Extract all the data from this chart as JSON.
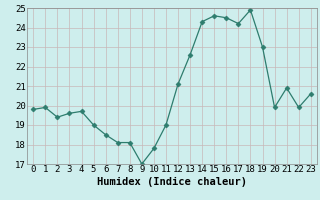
{
  "x": [
    0,
    1,
    2,
    3,
    4,
    5,
    6,
    7,
    8,
    9,
    10,
    11,
    12,
    13,
    14,
    15,
    16,
    17,
    18,
    19,
    20,
    21,
    22,
    23
  ],
  "y": [
    19.8,
    19.9,
    19.4,
    19.6,
    19.7,
    19.0,
    18.5,
    18.1,
    18.1,
    17.0,
    17.8,
    19.0,
    21.1,
    22.6,
    24.3,
    24.6,
    24.5,
    24.2,
    24.9,
    23.0,
    19.9,
    20.9,
    19.9,
    20.6
  ],
  "xlabel": "Humidex (Indice chaleur)",
  "xlim": [
    -0.5,
    23.5
  ],
  "ylim": [
    17,
    25
  ],
  "yticks": [
    17,
    18,
    19,
    20,
    21,
    22,
    23,
    24,
    25
  ],
  "xticks": [
    0,
    1,
    2,
    3,
    4,
    5,
    6,
    7,
    8,
    9,
    10,
    11,
    12,
    13,
    14,
    15,
    16,
    17,
    18,
    19,
    20,
    21,
    22,
    23
  ],
  "line_color": "#2e7d6e",
  "marker": "D",
  "marker_size": 2.5,
  "bg_color": "#ceeeed",
  "grid_color": "#c8b8b8",
  "xlabel_fontsize": 7.5,
  "tick_fontsize": 6.5
}
